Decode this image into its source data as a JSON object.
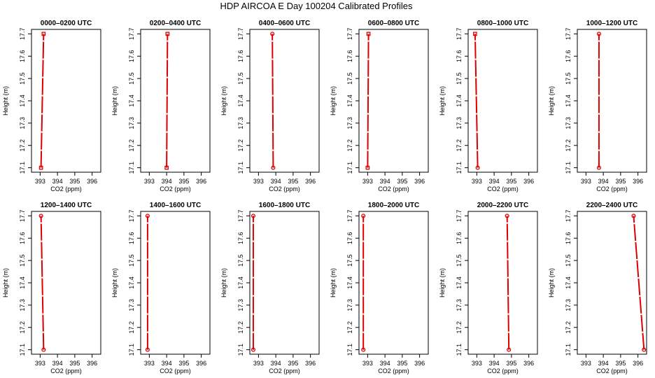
{
  "title": "HDP AIRCOA E  Day 100204  Calibrated Profiles",
  "colors": {
    "series": "#dd0000",
    "axes": "#000000",
    "background": "#ffffff"
  },
  "chart_data": {
    "type": "line",
    "layout": "2x6 small multiples",
    "xlabel": "CO2 (ppm)",
    "ylabel": "Height (m)",
    "xlim": [
      392.5,
      396.5
    ],
    "ylim": [
      17.08,
      17.72
    ],
    "xticks": [
      393,
      394,
      395,
      396
    ],
    "yticks": [
      17.1,
      17.2,
      17.3,
      17.4,
      17.5,
      17.6,
      17.7
    ],
    "grid": false,
    "panels": [
      {
        "title": "0000–0200 UTC",
        "points": [
          {
            "x": 393.05,
            "y": 17.1,
            "marker": "square"
          },
          {
            "x": 393.2,
            "y": 17.7,
            "marker": "square"
          }
        ]
      },
      {
        "title": "0200–0400 UTC",
        "points": [
          {
            "x": 394.0,
            "y": 17.1,
            "marker": "square"
          },
          {
            "x": 394.05,
            "y": 17.7,
            "marker": "square"
          }
        ]
      },
      {
        "title": "0400–0600 UTC",
        "points": [
          {
            "x": 393.85,
            "y": 17.1,
            "marker": "circle"
          },
          {
            "x": 393.8,
            "y": 17.7,
            "marker": "circle"
          }
        ]
      },
      {
        "title": "0600–0800 UTC",
        "points": [
          {
            "x": 393.0,
            "y": 17.1,
            "marker": "square"
          },
          {
            "x": 393.05,
            "y": 17.7,
            "marker": "square"
          }
        ]
      },
      {
        "title": "0800–1000 UTC",
        "points": [
          {
            "x": 393.05,
            "y": 17.1,
            "marker": "circle"
          },
          {
            "x": 392.9,
            "y": 17.7,
            "marker": "square"
          }
        ]
      },
      {
        "title": "1000–1200 UTC",
        "points": [
          {
            "x": 393.75,
            "y": 17.1,
            "marker": "circle"
          },
          {
            "x": 393.75,
            "y": 17.7,
            "marker": "circle"
          }
        ]
      },
      {
        "title": "1200–1400 UTC",
        "points": [
          {
            "x": 393.2,
            "y": 17.1,
            "marker": "circle"
          },
          {
            "x": 393.05,
            "y": 17.7,
            "marker": "circle"
          }
        ]
      },
      {
        "title": "1400–1600 UTC",
        "points": [
          {
            "x": 392.9,
            "y": 17.1,
            "marker": "circle"
          },
          {
            "x": 392.9,
            "y": 17.7,
            "marker": "circle"
          }
        ]
      },
      {
        "title": "1600–1800 UTC",
        "points": [
          {
            "x": 392.7,
            "y": 17.1,
            "marker": "circle"
          },
          {
            "x": 392.7,
            "y": 17.7,
            "marker": "circle"
          }
        ]
      },
      {
        "title": "1800–2000 UTC",
        "points": [
          {
            "x": 392.75,
            "y": 17.1,
            "marker": "circle"
          },
          {
            "x": 392.75,
            "y": 17.7,
            "marker": "circle"
          }
        ]
      },
      {
        "title": "2000–2200 UTC",
        "points": [
          {
            "x": 394.85,
            "y": 17.1,
            "marker": "circle"
          },
          {
            "x": 394.75,
            "y": 17.7,
            "marker": "circle"
          }
        ]
      },
      {
        "title": "2200–2400 UTC",
        "points": [
          {
            "x": 396.35,
            "y": 17.1,
            "marker": "circle"
          },
          {
            "x": 395.75,
            "y": 17.7,
            "marker": "circle"
          }
        ]
      }
    ]
  }
}
